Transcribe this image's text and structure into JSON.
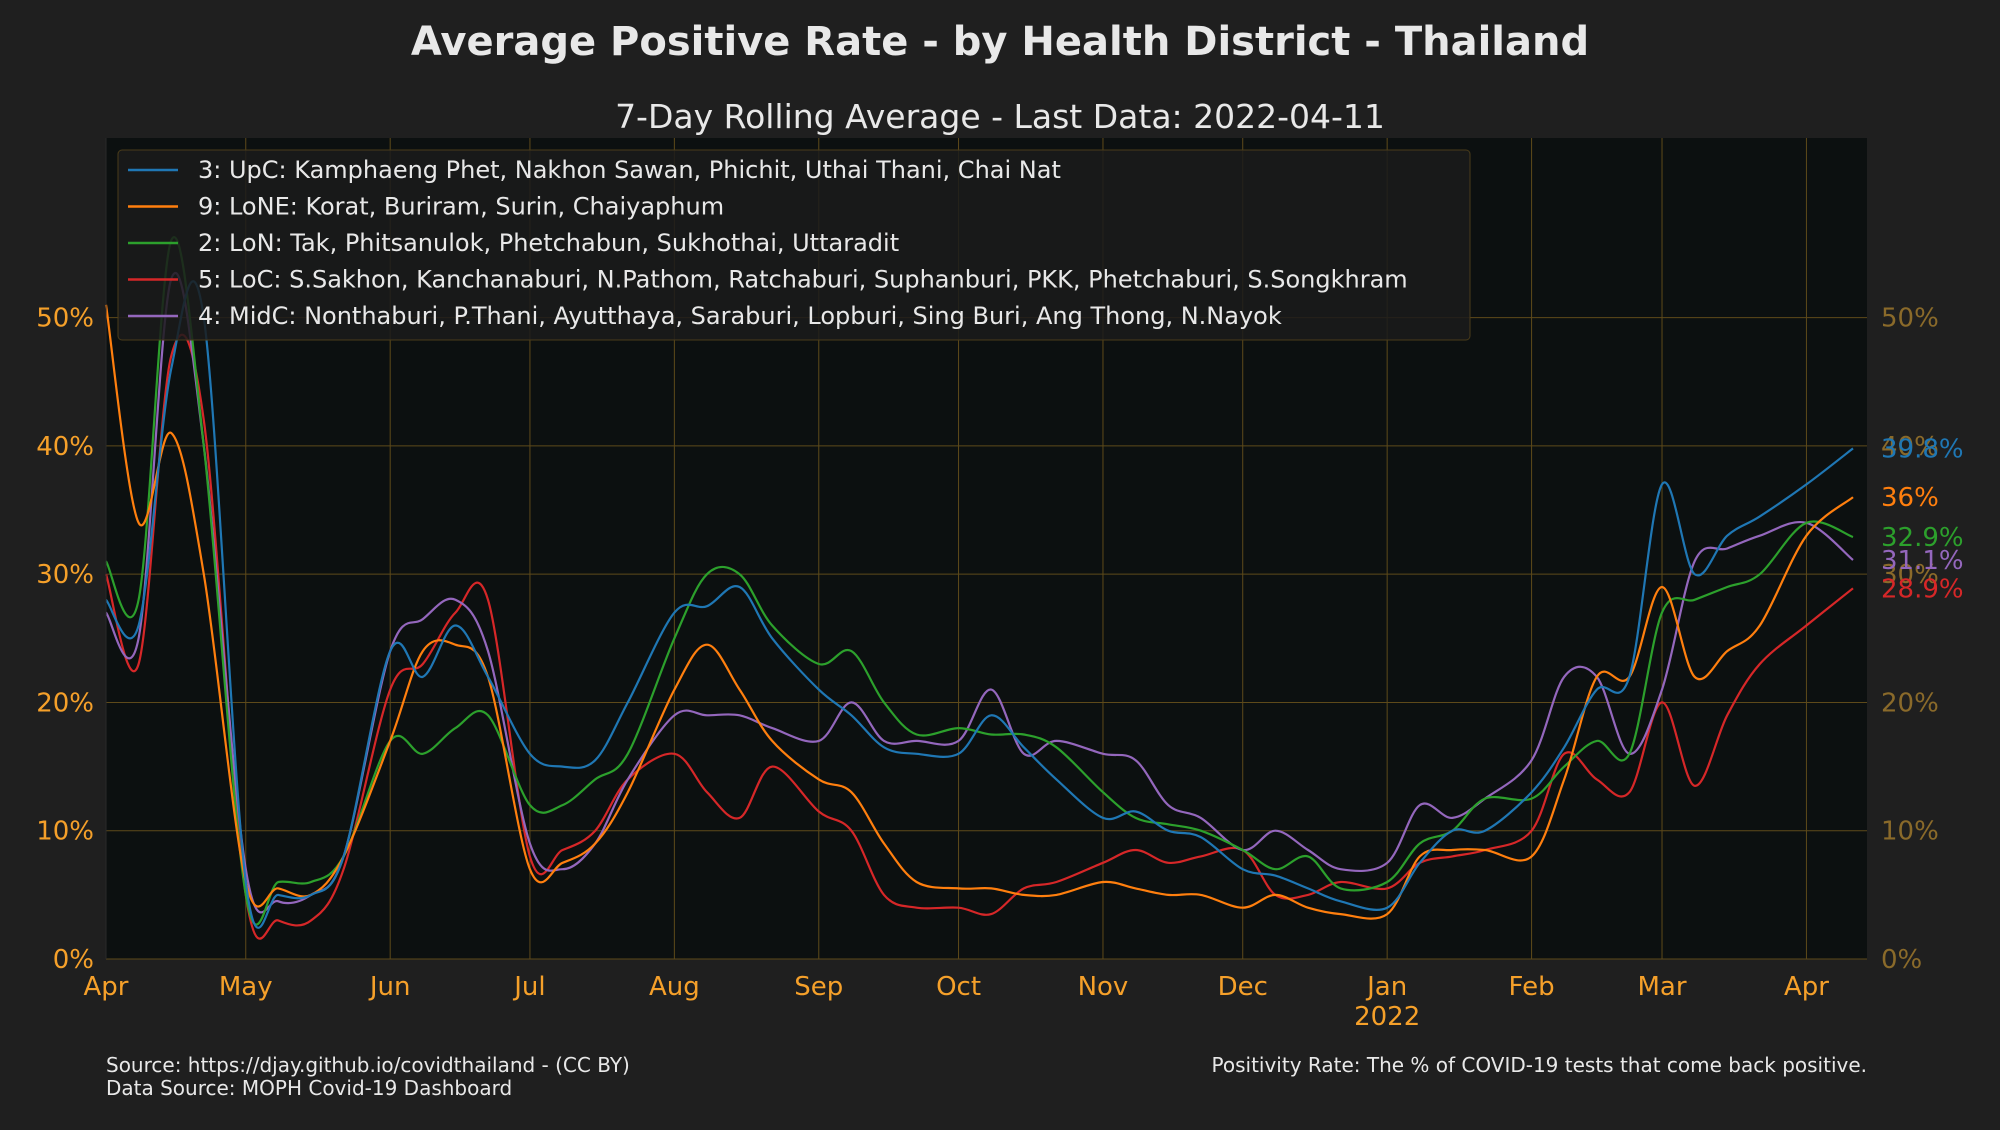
{
  "title": "Average Positive Rate - by Health District - Thailand",
  "subtitle": "7-Day Rolling Average - Last Data: 2022-04-11",
  "footer": {
    "source": "Source: https://djay.github.io/covidthailand - (CC BY)",
    "data_source": "Data Source: MOPH Covid-19 Dashboard",
    "note": "Positivity Rate: The % of COVID-19 tests that come back positive."
  },
  "colors": {
    "background": "#1f1f1f",
    "plot_background": "#0c1010",
    "grid": "#5e4a1a",
    "tick_left": "#f5a02a",
    "tick_right": "#8a6a2a"
  },
  "chart_data": {
    "type": "line",
    "title": "Average Positive Rate - by Health District - Thailand",
    "subtitle": "7-Day Rolling Average - Last Data: 2022-04-11",
    "xlabel": "",
    "ylabel": "",
    "x_ticks": [
      "Apr",
      "May",
      "Jun",
      "Jul",
      "Aug",
      "Sep",
      "Oct",
      "Nov",
      "Dec",
      "Jan",
      "Feb",
      "Mar",
      "Apr"
    ],
    "x_year_label": "2022",
    "y_ticks": [
      "0%",
      "10%",
      "20%",
      "30%",
      "40%",
      "50%"
    ],
    "ylim": [
      0,
      0.64
    ],
    "grid": true,
    "legend_position": "top-left",
    "x": [
      "2021-04-01",
      "2021-04-08",
      "2021-04-15",
      "2021-04-22",
      "2021-05-01",
      "2021-05-08",
      "2021-05-15",
      "2021-05-22",
      "2021-06-01",
      "2021-06-08",
      "2021-06-15",
      "2021-06-22",
      "2021-07-01",
      "2021-07-08",
      "2021-07-15",
      "2021-07-22",
      "2021-08-01",
      "2021-08-08",
      "2021-08-15",
      "2021-08-22",
      "2021-09-01",
      "2021-09-08",
      "2021-09-15",
      "2021-09-22",
      "2021-10-01",
      "2021-10-08",
      "2021-10-15",
      "2021-10-22",
      "2021-11-01",
      "2021-11-08",
      "2021-11-15",
      "2021-11-22",
      "2021-12-01",
      "2021-12-08",
      "2021-12-15",
      "2021-12-22",
      "2022-01-01",
      "2022-01-08",
      "2022-01-15",
      "2022-01-22",
      "2022-02-01",
      "2022-02-08",
      "2022-02-15",
      "2022-02-22",
      "2022-03-01",
      "2022-03-08",
      "2022-03-15",
      "2022-03-22",
      "2022-04-01",
      "2022-04-11"
    ],
    "series": [
      {
        "name": "3: UpC: Kamphaeng Phet, Nakhon Sawan, Phichit, Uthai Thani, Chai Nat",
        "color": "#1f77b4",
        "end_label": "39.8%",
        "values": [
          0.28,
          0.26,
          0.46,
          0.5,
          0.06,
          0.05,
          0.05,
          0.08,
          0.24,
          0.22,
          0.26,
          0.22,
          0.16,
          0.15,
          0.155,
          0.2,
          0.27,
          0.275,
          0.29,
          0.25,
          0.21,
          0.19,
          0.165,
          0.16,
          0.16,
          0.19,
          0.165,
          0.14,
          0.11,
          0.115,
          0.1,
          0.095,
          0.07,
          0.065,
          0.055,
          0.045,
          0.04,
          0.075,
          0.1,
          0.1,
          0.13,
          0.165,
          0.21,
          0.22,
          0.37,
          0.3,
          0.33,
          0.345,
          0.37,
          0.398
        ]
      },
      {
        "name": "9: LoNE: Korat, Buriram, Surin, Chaiyaphum",
        "color": "#ff7f0e",
        "end_label": "36%",
        "values": [
          0.51,
          0.34,
          0.41,
          0.3,
          0.06,
          0.055,
          0.05,
          0.08,
          0.17,
          0.24,
          0.245,
          0.22,
          0.07,
          0.075,
          0.09,
          0.13,
          0.21,
          0.245,
          0.21,
          0.17,
          0.14,
          0.13,
          0.09,
          0.06,
          0.055,
          0.055,
          0.05,
          0.05,
          0.06,
          0.055,
          0.05,
          0.05,
          0.04,
          0.05,
          0.04,
          0.035,
          0.035,
          0.08,
          0.085,
          0.085,
          0.08,
          0.14,
          0.22,
          0.22,
          0.29,
          0.22,
          0.24,
          0.26,
          0.33,
          0.36
        ]
      },
      {
        "name": "2: LoN: Tak, Phitsanulok, Phetchabun, Sukhothai, Uttaradit",
        "color": "#2ca02c",
        "end_label": "32.9%",
        "values": [
          0.31,
          0.28,
          0.56,
          0.4,
          0.05,
          0.06,
          0.06,
          0.08,
          0.17,
          0.16,
          0.18,
          0.19,
          0.12,
          0.12,
          0.14,
          0.16,
          0.25,
          0.3,
          0.3,
          0.26,
          0.23,
          0.24,
          0.2,
          0.175,
          0.18,
          0.175,
          0.175,
          0.165,
          0.13,
          0.11,
          0.105,
          0.1,
          0.085,
          0.07,
          0.08,
          0.055,
          0.06,
          0.09,
          0.1,
          0.125,
          0.125,
          0.15,
          0.17,
          0.16,
          0.27,
          0.28,
          0.29,
          0.3,
          0.34,
          0.329
        ]
      },
      {
        "name": "5: LoC: S.Sakhon, Kanchanaburi, N.Pathom, Ratchaburi, Suphanburi, PKK, Phetchaburi, S.Songkhram",
        "color": "#d62728",
        "end_label": "28.9%",
        "values": [
          0.3,
          0.23,
          0.47,
          0.42,
          0.05,
          0.03,
          0.03,
          0.07,
          0.21,
          0.23,
          0.27,
          0.28,
          0.08,
          0.085,
          0.1,
          0.14,
          0.16,
          0.13,
          0.11,
          0.15,
          0.115,
          0.1,
          0.05,
          0.04,
          0.04,
          0.035,
          0.055,
          0.06,
          0.075,
          0.085,
          0.075,
          0.08,
          0.085,
          0.05,
          0.05,
          0.06,
          0.055,
          0.075,
          0.08,
          0.085,
          0.1,
          0.16,
          0.14,
          0.13,
          0.2,
          0.135,
          0.19,
          0.23,
          0.26,
          0.289
        ]
      },
      {
        "name": "4: MidC: Nonthaburi, P.Thani, Ayutthaya, Saraburi, Lopburi, Sing Buri, Ang Thong, N.Nayok",
        "color": "#9467bd",
        "end_label": "31.1%",
        "values": [
          0.27,
          0.25,
          0.53,
          0.4,
          0.07,
          0.045,
          0.05,
          0.08,
          0.24,
          0.265,
          0.28,
          0.24,
          0.09,
          0.07,
          0.09,
          0.14,
          0.19,
          0.19,
          0.19,
          0.18,
          0.17,
          0.2,
          0.17,
          0.17,
          0.17,
          0.21,
          0.16,
          0.17,
          0.16,
          0.155,
          0.12,
          0.11,
          0.085,
          0.1,
          0.085,
          0.07,
          0.075,
          0.12,
          0.11,
          0.125,
          0.155,
          0.22,
          0.22,
          0.16,
          0.21,
          0.31,
          0.32,
          0.33,
          0.34,
          0.311
        ]
      }
    ]
  }
}
